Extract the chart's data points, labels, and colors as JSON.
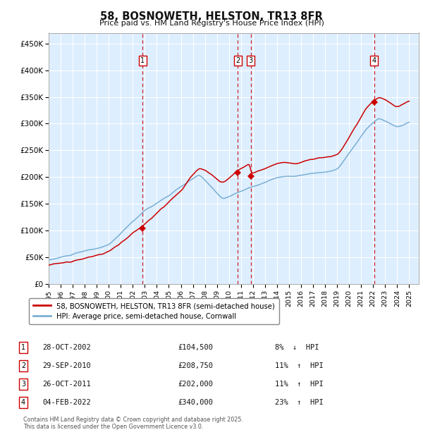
{
  "title": "58, BOSNOWETH, HELSTON, TR13 8FR",
  "subtitle": "Price paid vs. HM Land Registry's House Price Index (HPI)",
  "legend_property": "58, BOSNOWETH, HELSTON, TR13 8FR (semi-detached house)",
  "legend_hpi": "HPI: Average price, semi-detached house, Cornwall",
  "footer1": "Contains HM Land Registry data © Crown copyright and database right 2025.",
  "footer2": "This data is licensed under the Open Government Licence v3.0.",
  "transactions": [
    {
      "num": 1,
      "date": "28-OCT-2002",
      "price": 104500,
      "pct": "8%",
      "dir": "↓",
      "sale_year": 2002.83
    },
    {
      "num": 2,
      "date": "29-SEP-2010",
      "price": 208750,
      "pct": "11%",
      "dir": "↑",
      "sale_year": 2010.75
    },
    {
      "num": 3,
      "date": "26-OCT-2011",
      "price": 202000,
      "pct": "11%",
      "dir": "↑",
      "sale_year": 2011.83
    },
    {
      "num": 4,
      "date": "04-FEB-2022",
      "price": 340000,
      "pct": "23%",
      "dir": "↑",
      "sale_year": 2022.09
    }
  ],
  "property_color": "#cc0000",
  "hpi_color": "#7ab0d4",
  "background_color": "#ddeeff",
  "grid_color": "#ffffff",
  "dashed_line_color": "#cc0000",
  "ylim": [
    0,
    470000
  ],
  "xlim_start": 1995.0,
  "xlim_end": 2025.8,
  "yticks": [
    0,
    50000,
    100000,
    150000,
    200000,
    250000,
    300000,
    350000,
    400000,
    450000
  ],
  "ytick_labels": [
    "£0",
    "£50K",
    "£100K",
    "£150K",
    "£200K",
    "£250K",
    "£300K",
    "£350K",
    "£400K",
    "£450K"
  ],
  "xtick_years": [
    1995,
    1996,
    1997,
    1998,
    1999,
    2000,
    2001,
    2002,
    2003,
    2004,
    2005,
    2006,
    2007,
    2008,
    2009,
    2010,
    2011,
    2012,
    2013,
    2014,
    2015,
    2016,
    2017,
    2018,
    2019,
    2020,
    2021,
    2022,
    2023,
    2024,
    2025
  ]
}
